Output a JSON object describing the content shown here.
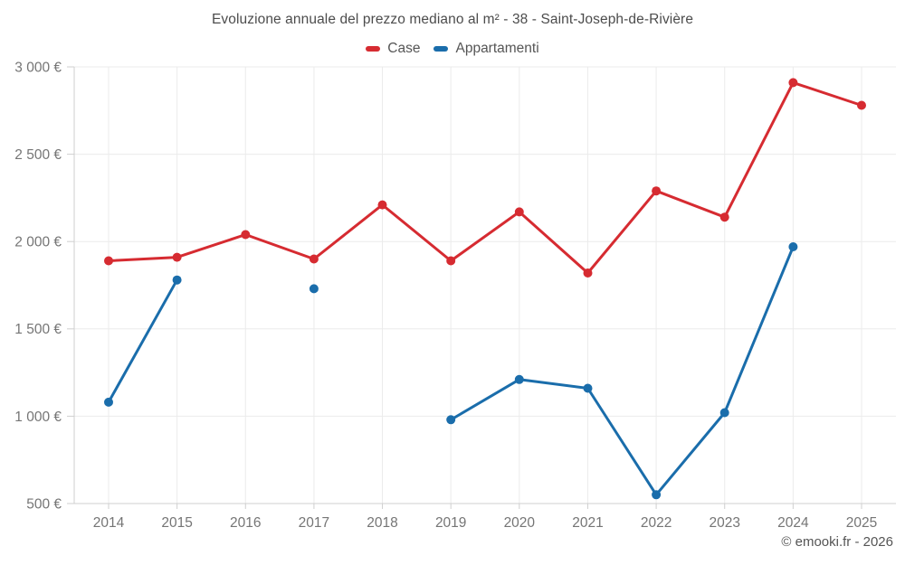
{
  "title": "Evoluzione annuale del prezzo mediano al m² - 38 - Saint-Joseph-de-Rivière",
  "legend": {
    "items": [
      {
        "label": "Case",
        "color": "#d62b31"
      },
      {
        "label": "Appartamenti",
        "color": "#1a6dab"
      }
    ]
  },
  "footer": {
    "copyright": "© emooki.fr - 2026"
  },
  "chart_data": {
    "type": "line",
    "title": "Evoluzione annuale del prezzo mediano al m² - 38 - Saint-Joseph-de-Rivière",
    "categories": [
      "2014",
      "2015",
      "2016",
      "2017",
      "2018",
      "2019",
      "2020",
      "2021",
      "2022",
      "2023",
      "2024",
      "2025"
    ],
    "series": [
      {
        "name": "Case",
        "color": "#d62b31",
        "values": [
          1890,
          1910,
          2040,
          1900,
          2210,
          1890,
          2170,
          1820,
          2290,
          2140,
          2910,
          2780
        ]
      },
      {
        "name": "Appartamenti",
        "color": "#1a6dab",
        "values": [
          1080,
          1780,
          null,
          1730,
          null,
          980,
          1210,
          1160,
          550,
          1020,
          1970,
          null
        ]
      }
    ],
    "xlabel": "",
    "ylabel": "",
    "ylim": [
      500,
      3000
    ],
    "yticks": [
      500,
      1000,
      1500,
      2000,
      2500,
      3000
    ],
    "ytick_labels": [
      "500 €",
      "1 000 €",
      "1 500 €",
      "2 000 €",
      "2 500 €",
      "3 000 €"
    ],
    "grid": true,
    "legend_position": "top",
    "colors": {
      "grid": "#ebebeb",
      "axis": "#cfcfcf",
      "tick_text": "#757575"
    }
  }
}
